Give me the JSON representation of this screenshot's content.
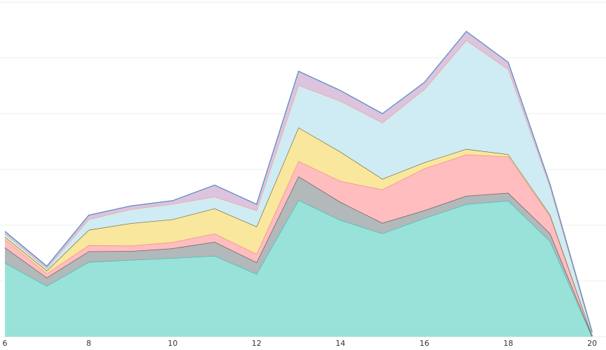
{
  "chart_data": {
    "type": "stacked_area",
    "x": [
      6,
      7,
      8,
      9,
      10,
      11,
      12,
      13,
      14,
      15,
      16,
      17,
      18,
      19,
      20
    ],
    "xlim": [
      6,
      20.33
    ],
    "xticks": [
      6,
      8,
      10,
      12,
      14,
      16,
      18,
      20
    ],
    "ylim": [
      0,
      60
    ],
    "ygrid": [
      0,
      10,
      20,
      30,
      40,
      50,
      60
    ],
    "grid": true,
    "series": [
      {
        "color": "#98e2d9",
        "line_color": "#3dbdb0",
        "values": [
          13.25,
          9.1,
          13.4,
          13.75,
          14.1,
          14.5,
          11.25,
          24.5,
          20.9,
          18.5,
          21.25,
          23.75,
          24.4,
          17.1,
          0
        ]
      },
      {
        "color": "#b3b8ba",
        "line_color": "#5a5a5a",
        "values": [
          2.75,
          1.5,
          1.9,
          1.6,
          1.75,
          2.5,
          2.1,
          4.25,
          3.25,
          1.9,
          1.4,
          1.5,
          1.4,
          1.4,
          0.1
        ]
      },
      {
        "color": "#ffbdbf",
        "line_color": "#ee8a8a",
        "values": [
          1.5,
          0.75,
          1.1,
          1.0,
          1.1,
          1.5,
          1.5,
          2.75,
          3.75,
          6.0,
          7.5,
          7.4,
          6.5,
          3.1,
          0.1
        ]
      },
      {
        "color": "#f8e79c",
        "line_color": "#6e6b45",
        "values": [
          0.4,
          0.5,
          2.75,
          4.0,
          4.1,
          4.5,
          4.9,
          6.0,
          5.25,
          1.9,
          1.1,
          1.0,
          0.4,
          0.25,
          0
        ]
      },
      {
        "color": "#cfebf3",
        "line_color": "#f0a68a",
        "values": [
          0.6,
          0.4,
          1.9,
          2.5,
          2.75,
          2.1,
          2.9,
          7.6,
          9.1,
          10.1,
          13.1,
          19.5,
          15.25,
          5.0,
          0.4
        ]
      },
      {
        "color": "#dcc3de",
        "line_color": "#5b8cc6",
        "values": [
          0.4,
          0.4,
          0.75,
          0.6,
          0.6,
          2.1,
          1.1,
          2.5,
          1.9,
          1.6,
          1.25,
          1.6,
          1.25,
          0.4,
          0.25
        ]
      }
    ]
  }
}
